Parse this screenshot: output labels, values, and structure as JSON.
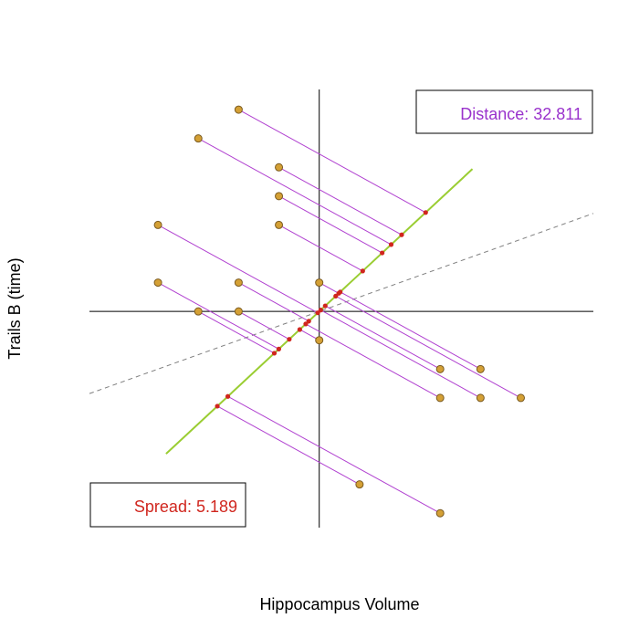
{
  "chart_data": {
    "type": "scatter",
    "xlabel": "Hippocampus Volume",
    "ylabel": "Trails B (time)",
    "xlim": [
      -5.7,
      6.8
    ],
    "ylim": [
      -7.5,
      7.7
    ],
    "grid": false,
    "points": [
      {
        "x": -2,
        "y": 7
      },
      {
        "x": -3,
        "y": 6
      },
      {
        "x": -1,
        "y": 5
      },
      {
        "x": -1,
        "y": 4
      },
      {
        "x": -4,
        "y": 3
      },
      {
        "x": -1,
        "y": 3
      },
      {
        "x": -4,
        "y": 1
      },
      {
        "x": -2,
        "y": 1
      },
      {
        "x": 0,
        "y": 1
      },
      {
        "x": -3,
        "y": 0
      },
      {
        "x": -2,
        "y": 0
      },
      {
        "x": 0,
        "y": -1
      },
      {
        "x": 3,
        "y": -2
      },
      {
        "x": 4,
        "y": -2
      },
      {
        "x": 3,
        "y": -3
      },
      {
        "x": 4,
        "y": -3
      },
      {
        "x": 5,
        "y": -3
      },
      {
        "x": 1,
        "y": -6
      },
      {
        "x": 3,
        "y": -7
      }
    ],
    "projection_line": {
      "slope": 1.3,
      "x_range": [
        -3.8,
        3.8
      ],
      "color": "#9acd32"
    },
    "reference_line": {
      "slope": 0.5,
      "style": "dashed",
      "color": "#808080"
    },
    "distance_label": "Distance: 32.811",
    "spread_label": "Spread: 5.189",
    "colors": {
      "point_fill": "#d4a035",
      "point_stroke": "#7a5a20",
      "residual": "#b040d0",
      "projection": "#d0261e",
      "distance_text": "#9932cc",
      "spread_text": "#d0261e",
      "axes": "#000000"
    }
  }
}
